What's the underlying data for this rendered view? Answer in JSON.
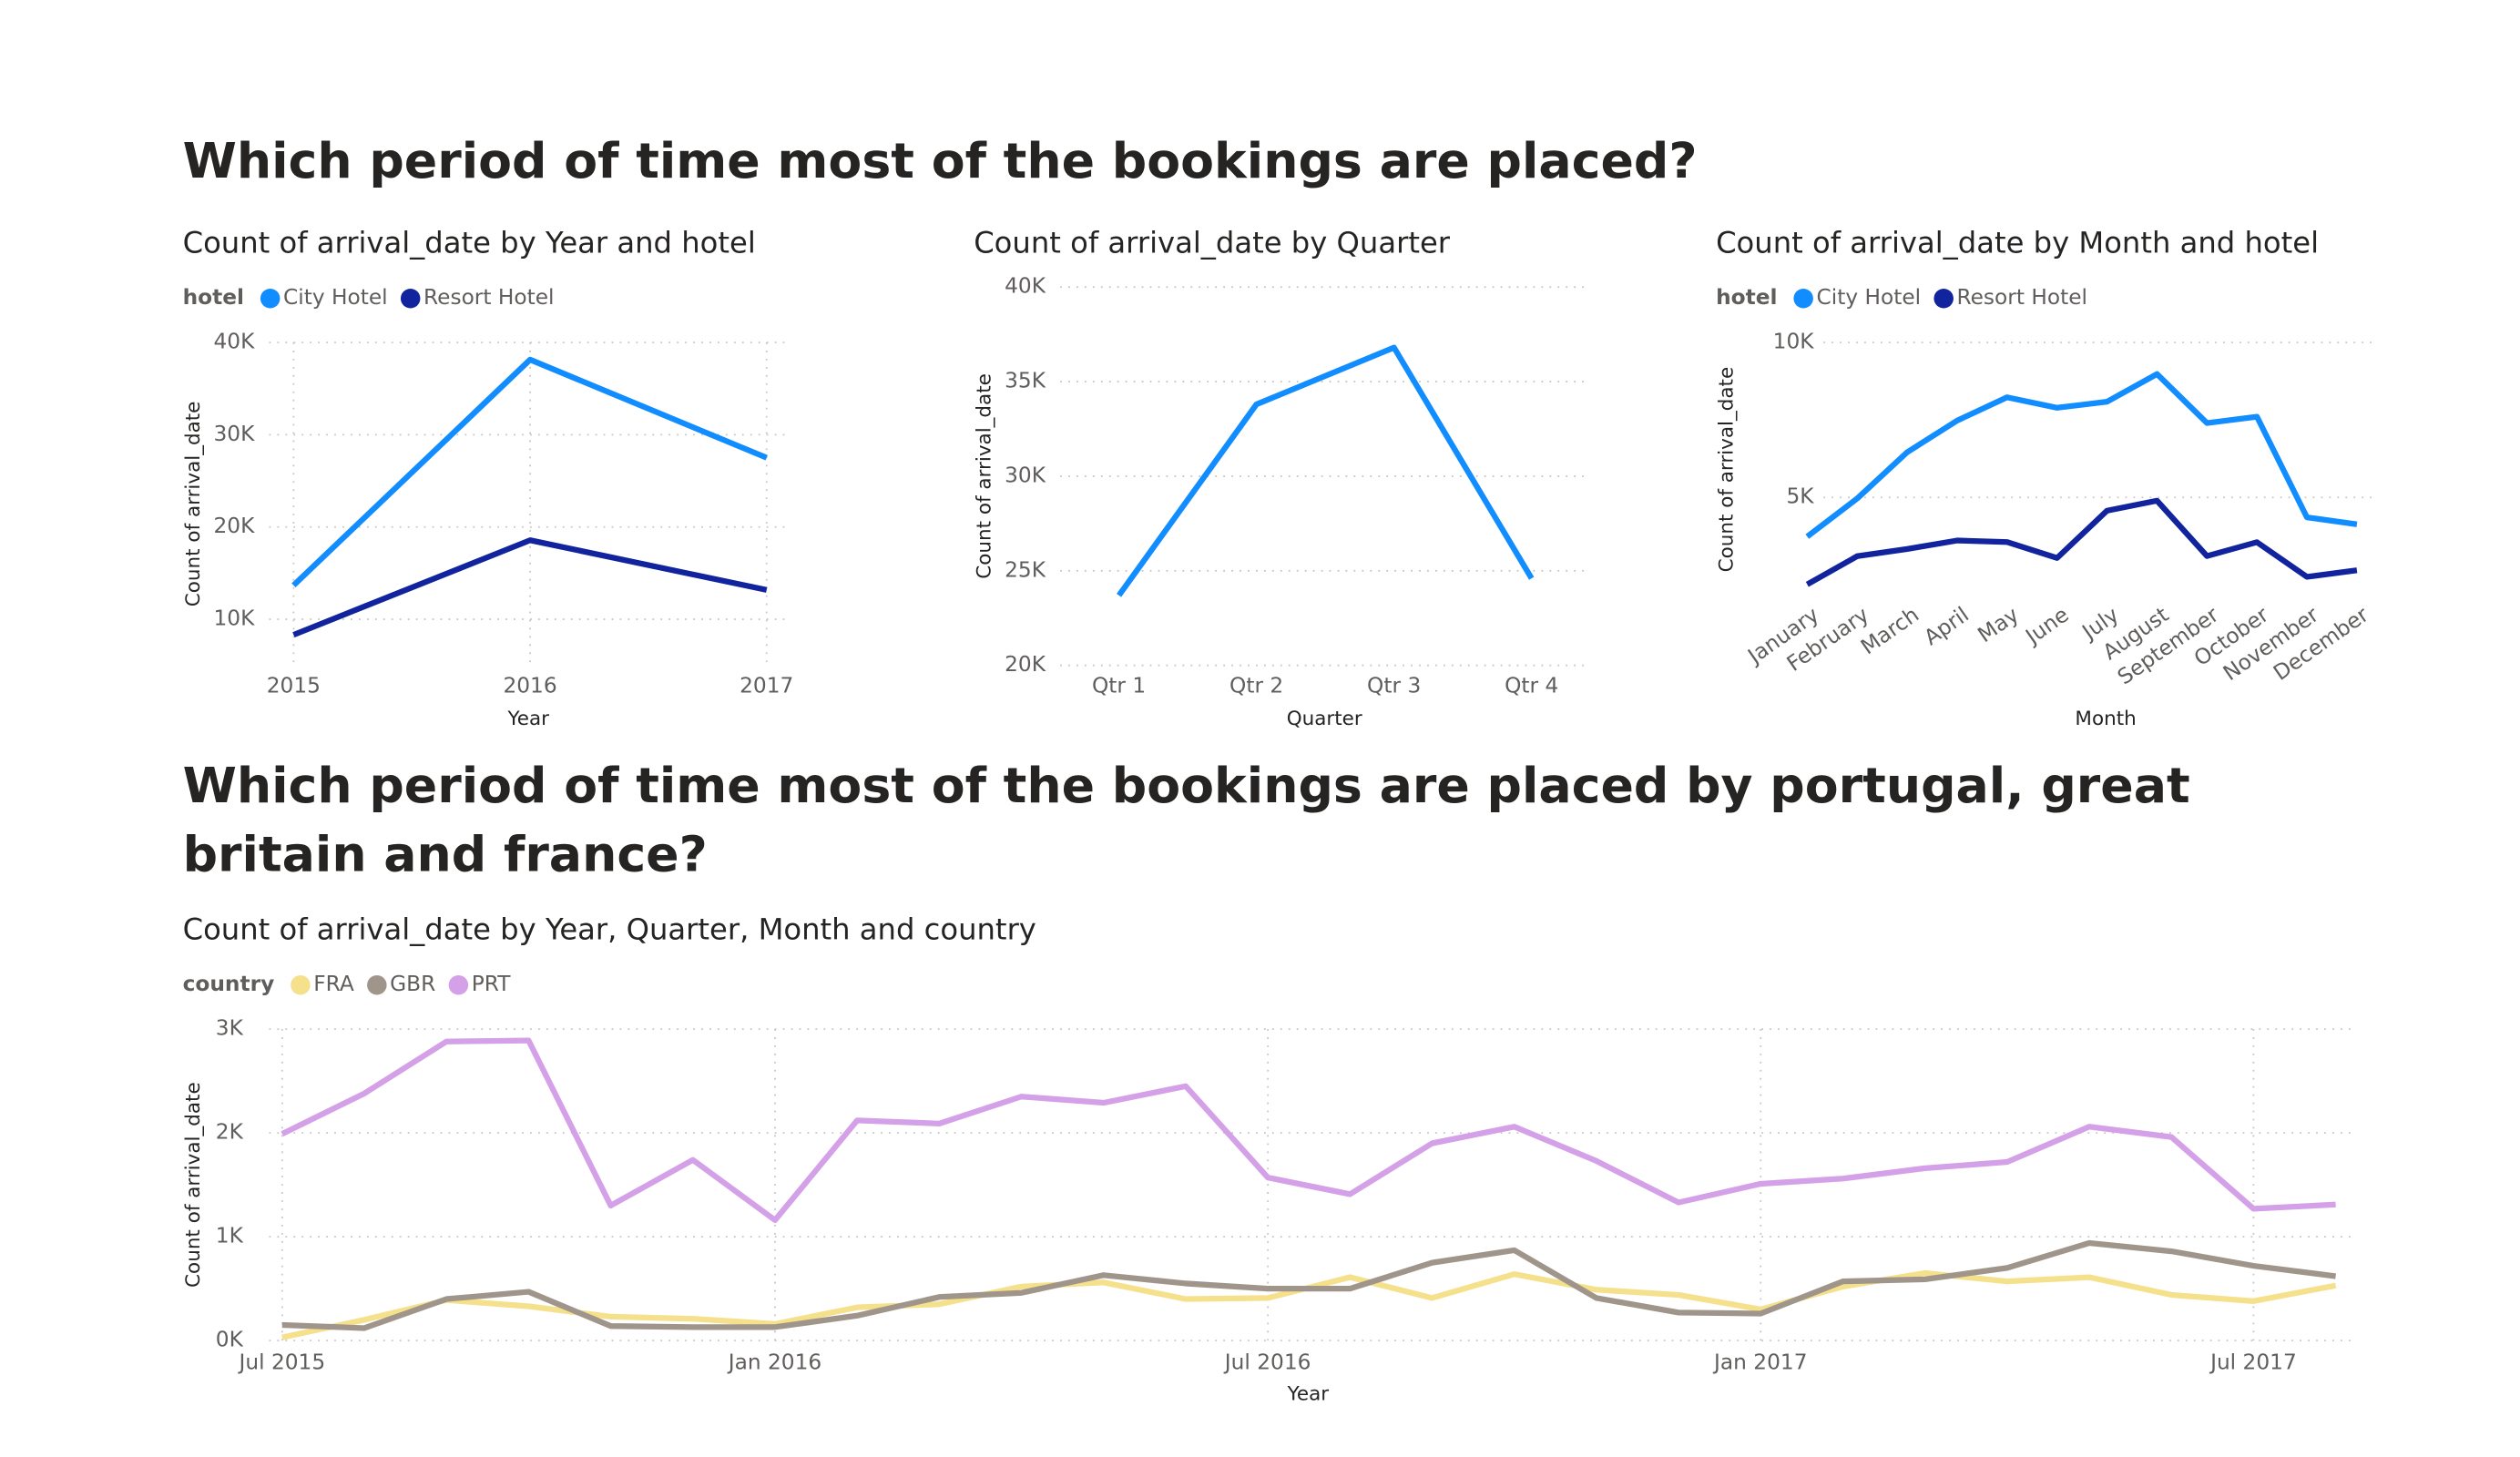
{
  "headings": [
    "Which period of time most of the bookings are placed?",
    "Which period of time most of the bookings are placed by portugal, great britain and france?"
  ],
  "chart_data": [
    {
      "type": "line",
      "title": "Count of arrival_date by Year and hotel",
      "legend_title": "hotel",
      "x_label": "Year",
      "y_label": "Count of arrival_date",
      "categories": [
        "2015",
        "2016",
        "2017"
      ],
      "series": [
        {
          "name": "City Hotel",
          "color": "#118dff",
          "values": [
            13682,
            38140,
            27508
          ]
        },
        {
          "name": "Resort Hotel",
          "color": "#12239e",
          "values": [
            8314,
            18567,
            13179
          ]
        }
      ],
      "ylim": [
        5000,
        40000
      ],
      "yticks": [
        {
          "value": 10000,
          "label": "10K"
        },
        {
          "value": 20000,
          "label": "20K"
        },
        {
          "value": 30000,
          "label": "30K"
        },
        {
          "value": 40000,
          "label": "40K"
        }
      ],
      "grid": true
    },
    {
      "type": "line",
      "title": "Count of arrival_date by Quarter",
      "x_label": "Quarter",
      "y_label": "Count of arrival_date",
      "categories": [
        "Qtr 1",
        "Qtr 2",
        "Qtr 3",
        "Qtr 4"
      ],
      "values": [
        23700,
        33800,
        36800,
        24600
      ],
      "color": "#118dff",
      "ylim": [
        20000,
        40000
      ],
      "yticks": [
        {
          "value": 20000,
          "label": "20K"
        },
        {
          "value": 25000,
          "label": "25K"
        },
        {
          "value": 30000,
          "label": "30K"
        },
        {
          "value": 35000,
          "label": "35K"
        },
        {
          "value": 40000,
          "label": "40K"
        }
      ],
      "grid": true
    },
    {
      "type": "line",
      "title": "Count of arrival_date by Month and hotel",
      "legend_title": "hotel",
      "x_label": "Month",
      "y_label": "Count of arrival_date",
      "categories": [
        "January",
        "February",
        "March",
        "April",
        "May",
        "June",
        "July",
        "August",
        "September",
        "October",
        "November",
        "December"
      ],
      "series": [
        {
          "name": "City Hotel",
          "color": "#118dff",
          "values": [
            3736,
            4965,
            6458,
            7480,
            8232,
            7894,
            8088,
            8983,
            7400,
            7605,
            4357,
            4132
          ]
        },
        {
          "name": "Resort Hotel",
          "color": "#12239e",
          "values": [
            2193,
            3103,
            3336,
            3609,
            3559,
            3045,
            4573,
            4894,
            3108,
            3555,
            2437,
            2648
          ]
        }
      ],
      "ylim": [
        1800,
        10000
      ],
      "yticks": [
        {
          "value": 5000,
          "label": "5K"
        },
        {
          "value": 10000,
          "label": "10K"
        }
      ],
      "grid": true
    },
    {
      "type": "line",
      "title": "Count of arrival_date by Year, Quarter, Month and country",
      "legend_title": "country",
      "x_label": "Year",
      "y_label": "Count of arrival_date",
      "categories": [
        "Jul 2015",
        null,
        null,
        null,
        null,
        null,
        "Jan 2016",
        null,
        null,
        null,
        null,
        null,
        "Jul 2016",
        null,
        null,
        null,
        null,
        null,
        "Jan 2017",
        null,
        null,
        null,
        null,
        null,
        "Jul 2017",
        null
      ],
      "series": [
        {
          "name": "FRA",
          "color": "#f5e08c",
          "values": [
            30,
            200,
            390,
            330,
            230,
            210,
            160,
            320,
            350,
            520,
            560,
            400,
            410,
            610,
            410,
            640,
            490,
            440,
            300,
            520,
            650,
            570,
            610,
            440,
            380,
            530
          ]
        },
        {
          "name": "GBR",
          "color": "#a0958a",
          "values": [
            150,
            120,
            400,
            470,
            140,
            130,
            130,
            240,
            420,
            460,
            630,
            550,
            500,
            500,
            750,
            870,
            410,
            270,
            260,
            570,
            590,
            700,
            940,
            860,
            720,
            620
          ]
        },
        {
          "name": "PRT",
          "color": "#d4a0e8",
          "values": [
            1990,
            2380,
            2880,
            2890,
            1300,
            1740,
            1160,
            2120,
            2090,
            2350,
            2290,
            2450,
            1570,
            1410,
            1900,
            2060,
            1730,
            1330,
            1510,
            1560,
            1660,
            1720,
            2060,
            1960,
            1270,
            1310
          ]
        }
      ],
      "ylim": [
        0,
        3000
      ],
      "yticks": [
        {
          "value": 0,
          "label": "0K"
        },
        {
          "value": 1000,
          "label": "1K"
        },
        {
          "value": 2000,
          "label": "2K"
        },
        {
          "value": 3000,
          "label": "3K"
        }
      ],
      "grid": true
    }
  ]
}
